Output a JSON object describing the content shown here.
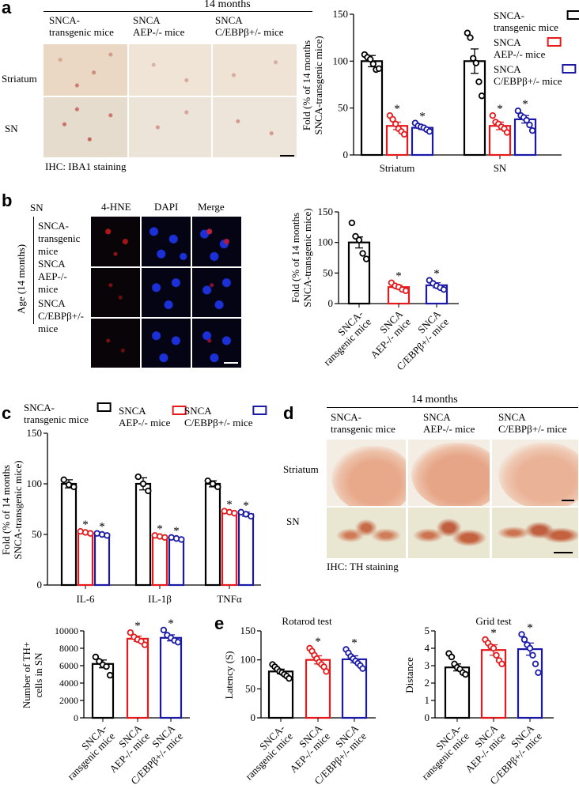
{
  "panels": {
    "a": {
      "letter": "a",
      "header": "14 months",
      "columns": [
        [
          "SNCA-",
          "transgenic mice"
        ],
        [
          "SNCA",
          "AEP-/- mice"
        ],
        [
          "SNCA",
          "C/EBPβ+/- mice"
        ]
      ],
      "rows": [
        "Striatum",
        "SN"
      ],
      "stain_caption": "IHC: IBA1 staining"
    },
    "b": {
      "letter": "b",
      "region": "SN",
      "channels": [
        "4-HNE",
        "DAPI",
        "Merge"
      ],
      "age_label": "Age (14 months)",
      "rows": [
        [
          "SNCA-",
          "transgenic",
          "mice"
        ],
        [
          "SNCA",
          "AEP-/-",
          "mice"
        ],
        [
          "SNCA",
          "C/EBPβ+/-",
          "mice"
        ]
      ]
    },
    "c": {
      "letter": "c"
    },
    "d": {
      "letter": "d",
      "header": "14 months",
      "columns": [
        [
          "SNCA-",
          "transgenic mice"
        ],
        [
          "SNCA",
          "AEP-/- mice"
        ],
        [
          "SNCA",
          "C/EBPβ+/- mice"
        ]
      ],
      "rows": [
        "Striatum",
        "SN"
      ],
      "stain_caption": "IHC: TH staining"
    },
    "e": {
      "letter": "e"
    }
  },
  "colors": {
    "snca": "#000000",
    "aep": "#e41a1c",
    "cebp": "#1a1aa6"
  },
  "chart_data": [
    {
      "id": "a",
      "type": "bar",
      "categories": [
        "Striatum",
        "SN"
      ],
      "ylabel": "Fold (% of 14 months SNCA-transgenic mice)",
      "ylim": [
        0,
        150
      ],
      "yticks": [
        0,
        50,
        100,
        150
      ],
      "legend": [
        "SNCA-transgenic mice",
        "SNCA AEP-/- mice",
        "SNCA C/EBPβ+/- mice"
      ],
      "legend_placement": "top-right",
      "series": [
        {
          "name": "SNCA-transgenic mice",
          "values": [
            100,
            100
          ],
          "sem": [
            6,
            13
          ],
          "points": [
            [
              107,
              104,
              102,
              97,
              91,
              92
            ],
            [
              130,
              125,
              103,
              98,
              78,
              63
            ]
          ],
          "sig": [
            false,
            false
          ]
        },
        {
          "name": "SNCA AEP-/- mice",
          "values": [
            31,
            31
          ],
          "sem": [
            4,
            4
          ],
          "points": [
            [
              42,
              38,
              33,
              28,
              25,
              22
            ],
            [
              42,
              35,
              33,
              30,
              28,
              24
            ]
          ],
          "sig": [
            true,
            true
          ]
        },
        {
          "name": "SNCA C/EBPβ+/- mice",
          "values": [
            29,
            38
          ],
          "sem": [
            2,
            4
          ],
          "points": [
            [
              34,
              31,
              30,
              29,
              27,
              25
            ],
            [
              47,
              42,
              40,
              37,
              32,
              26
            ]
          ],
          "sig": [
            true,
            true
          ]
        }
      ]
    },
    {
      "id": "b",
      "type": "bar",
      "categories": [
        "SNCA-transgenic mice",
        "SNCA AEP-/- mice",
        "SNCA C/EBPβ+/- mice"
      ],
      "ylabel": "Fold (% of 14 months SNCA-transgenic mice)",
      "ylim": [
        0,
        150
      ],
      "yticks": [
        0,
        50,
        100,
        150
      ],
      "values": [
        100,
        27,
        30
      ],
      "sem": [
        9,
        3,
        4
      ],
      "points": [
        [
          132,
          110,
          104,
          82,
          73
        ],
        [
          34,
          29,
          27,
          23,
          21
        ],
        [
          38,
          33,
          29,
          26,
          23
        ]
      ],
      "sig": [
        false,
        true,
        true
      ]
    },
    {
      "id": "c",
      "type": "bar",
      "categories": [
        "IL-6",
        "IL-1β",
        "TNFα"
      ],
      "ylabel": "Fold (% of 14 months SNCA-transgenic mice)",
      "ylim": [
        0,
        150
      ],
      "yticks": [
        0,
        50,
        100,
        150
      ],
      "legend": [
        "SNCA-transgenic mice",
        "SNCA AEP-/- mice",
        "SNCA C/EBPβ+/- mice"
      ],
      "legend_placement": "top",
      "series": [
        {
          "name": "SNCA-transgenic mice",
          "values": [
            100,
            100,
            100
          ],
          "sem": [
            4,
            6,
            3
          ],
          "points": [
            [
              104,
              99,
              97
            ],
            [
              107,
              100,
              93
            ],
            [
              103,
              100,
              97
            ]
          ],
          "sig": [
            false,
            false,
            false
          ]
        },
        {
          "name": "SNCA AEP-/- mice",
          "values": [
            52,
            48,
            72
          ],
          "sem": [
            1,
            1,
            1
          ],
          "points": [
            [
              53,
              52,
              51
            ],
            [
              49,
              48,
              47
            ],
            [
              73,
              72,
              71
            ]
          ],
          "sig": [
            true,
            true,
            true
          ]
        },
        {
          "name": "SNCA C/EBPβ+/- mice",
          "values": [
            50,
            46,
            70
          ],
          "sem": [
            1,
            1,
            2
          ],
          "points": [
            [
              51,
              50,
              49
            ],
            [
              47,
              46,
              45
            ],
            [
              72,
              70,
              68
            ]
          ],
          "sig": [
            true,
            true,
            true
          ]
        }
      ]
    },
    {
      "id": "d-th",
      "type": "bar",
      "categories": [
        "SNCA-transgenic mice",
        "SNCA AEP-/- mice",
        "SNCA C/EBPβ+/- mice"
      ],
      "ylabel": "Number of TH+ cells in SN",
      "ylim": [
        0,
        10000
      ],
      "yticks": [
        0,
        2000,
        4000,
        6000,
        8000,
        10000
      ],
      "values": [
        6200,
        9100,
        9200
      ],
      "sem": [
        450,
        300,
        350
      ],
      "points": [
        [
          7000,
          6500,
          6100,
          5900,
          4900
        ],
        [
          9800,
          9300,
          9000,
          8800,
          8400
        ],
        [
          10100,
          9500,
          9200,
          8900,
          8700
        ]
      ],
      "sig": [
        false,
        true,
        true
      ]
    },
    {
      "id": "e-rotarod",
      "type": "bar",
      "title": "Rotarod test",
      "categories": [
        "SNCA-transgenic mice",
        "SNCA AEP-/- mice",
        "SNCA C/EBPβ+/- mice"
      ],
      "ylabel": "Latency (S)",
      "ylim": [
        0,
        150
      ],
      "yticks": [
        0,
        50,
        100,
        150
      ],
      "values": [
        80,
        100,
        101
      ],
      "sem": [
        4,
        7,
        6
      ],
      "points": [
        [
          92,
          88,
          84,
          80,
          78,
          75,
          72,
          68
        ],
        [
          120,
          115,
          108,
          102,
          96,
          92,
          88,
          80
        ],
        [
          118,
          112,
          106,
          102,
          98,
          94,
          90,
          85
        ]
      ],
      "sig": [
        false,
        true,
        true
      ]
    },
    {
      "id": "e-grid",
      "type": "bar",
      "title": "Grid test",
      "categories": [
        "SNCA-transgenic mice",
        "SNCA AEP-/- mice",
        "SNCA C/EBPβ+/- mice"
      ],
      "ylabel": "Distance",
      "ylim": [
        0,
        5
      ],
      "yticks": [
        0,
        1,
        2,
        3,
        4,
        5
      ],
      "values": [
        2.9,
        3.9,
        3.95
      ],
      "sem": [
        0.2,
        0.3,
        0.35
      ],
      "points": [
        [
          3.7,
          3.5,
          3.1,
          2.9,
          2.8,
          2.6,
          2.5
        ],
        [
          4.5,
          4.3,
          4.1,
          4.0,
          3.6,
          3.3,
          3.1
        ],
        [
          4.8,
          4.5,
          4.2,
          4.0,
          3.6,
          3.1,
          2.6
        ]
      ],
      "sig": [
        false,
        true,
        true
      ]
    }
  ]
}
